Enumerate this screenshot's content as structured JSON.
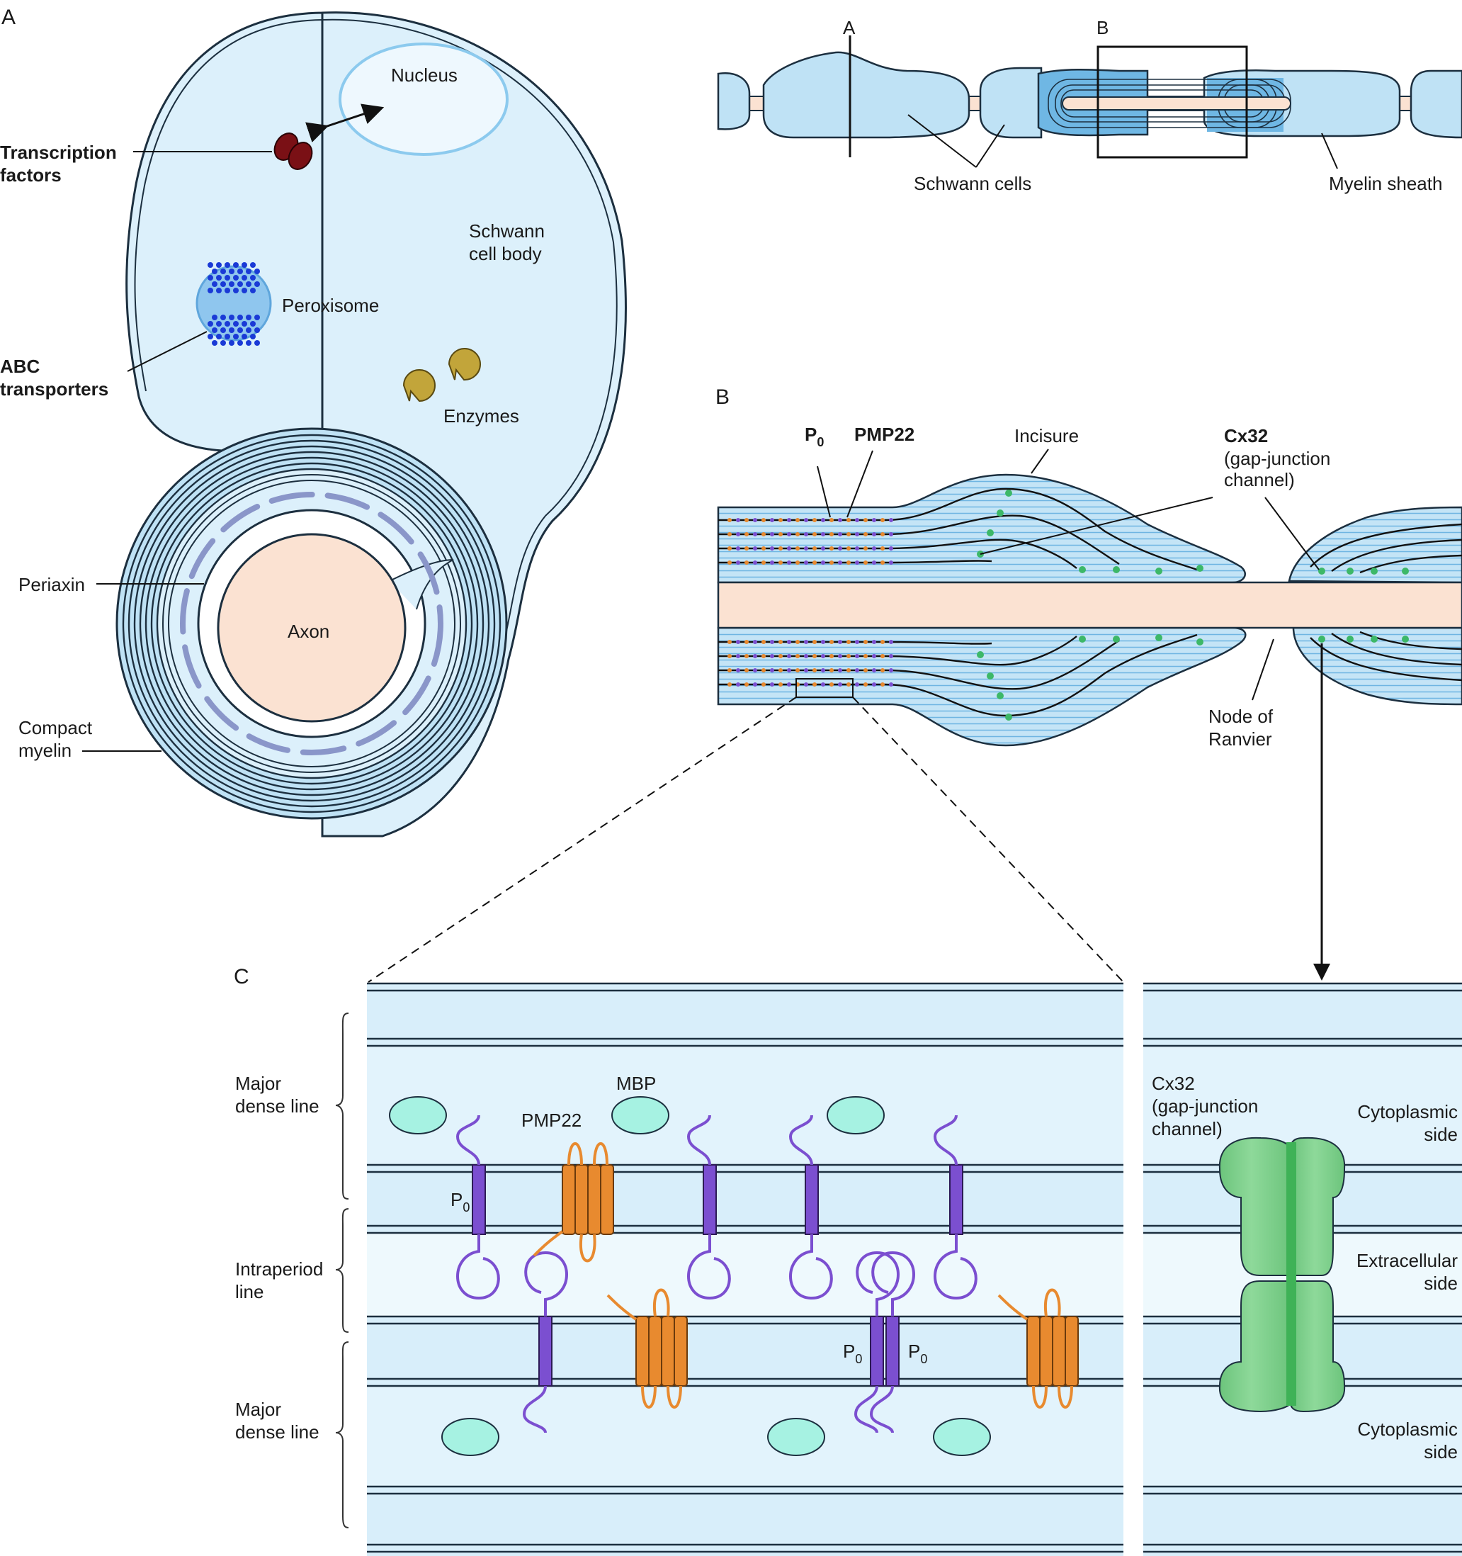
{
  "panels": {
    "a": "A",
    "b": "B",
    "c": "C"
  },
  "panel_a": {
    "nucleus": "Nucleus",
    "transcription_factors": [
      "Transcription",
      "factors"
    ],
    "schwann_cell_body": [
      "Schwann",
      "cell body"
    ],
    "peroxisome": "Peroxisome",
    "abc_transporters": [
      "ABC",
      "transporters"
    ],
    "enzymes": "Enzymes",
    "periaxin": "Periaxin",
    "axon": "Axon",
    "compact_myelin": [
      "Compact",
      "myelin"
    ]
  },
  "overview": {
    "marker_a": "A",
    "marker_b": "B",
    "schwann_cells": "Schwann cells",
    "myelin_sheath": "Myelin sheath"
  },
  "panel_b": {
    "p0": "P",
    "p0_sub": "0",
    "pmp22": "PMP22",
    "incisure": "Incisure",
    "cx32": "Cx32",
    "cx32_desc": [
      "(gap-junction",
      "channel)"
    ],
    "node_of_ranvier": [
      "Node of",
      "Ranvier"
    ]
  },
  "panel_c": {
    "major_dense_line": [
      "Major",
      "dense line"
    ],
    "intraperiod_line": [
      "Intraperiod",
      "line"
    ],
    "mbp": "MBP",
    "pmp22": "PMP22",
    "p0": "P",
    "p0_sub": "0",
    "cx32_label": [
      "Cx32",
      "(gap-junction",
      "channel)"
    ],
    "cytoplasmic_side": [
      "Cytoplasmic",
      "side"
    ],
    "extracellular_side": [
      "Extracellular",
      "side"
    ]
  },
  "colors": {
    "cytoplasm": "#dcf0fb",
    "myelin_blue": "#a9d7f2",
    "axon": "#fbe2d2",
    "periaxin": "#8a96c9",
    "transcription_factor": "#7a1015",
    "enzyme": "#c2a53a",
    "abc_transporter": "#1a3ad6",
    "p0_protein": "#7b4fd0",
    "pmp22_protein": "#e88a2f",
    "mbp": "#a6f2e2",
    "cx32_channel": "#7ecf8a",
    "gap_junction_dot": "#3db868"
  }
}
